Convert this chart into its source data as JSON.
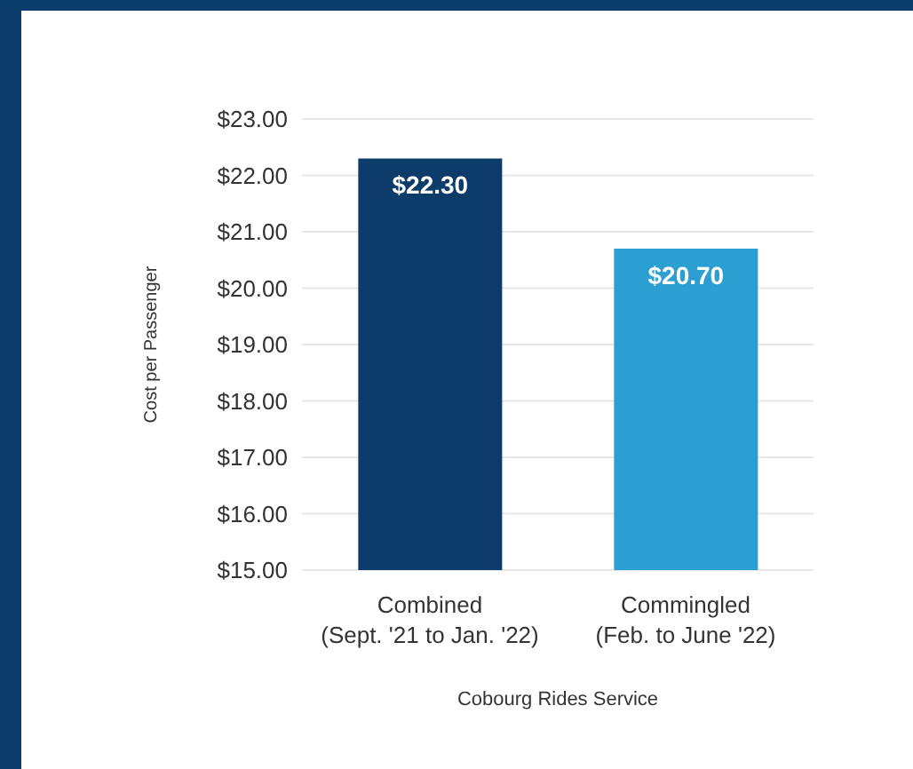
{
  "chart_data": {
    "type": "bar",
    "xlabel": "Cobourg Rides Service",
    "ylabel": "Cost per Passenger",
    "categories": [
      "Combined\n(Sept. '21 to Jan. '22)",
      "Commingled\n(Feb. to June '22)"
    ],
    "values": [
      22.3,
      20.7
    ],
    "colors": [
      "#0d3c6b",
      "#2b9fd1"
    ],
    "value_labels": [
      "$22.30",
      "$20.70"
    ],
    "ylim": [
      15,
      23
    ],
    "yticks": [
      {
        "value": 15,
        "label": "$15.00"
      },
      {
        "value": 16,
        "label": "$16.00"
      },
      {
        "value": 17,
        "label": "$17.00"
      },
      {
        "value": 18,
        "label": "$18.00"
      },
      {
        "value": 19,
        "label": "$19.00"
      },
      {
        "value": 20,
        "label": "$20.00"
      },
      {
        "value": 21,
        "label": "$21.00"
      },
      {
        "value": 22,
        "label": "$22.00"
      },
      {
        "value": 23,
        "label": "$23.00"
      }
    ],
    "grid": "y"
  }
}
